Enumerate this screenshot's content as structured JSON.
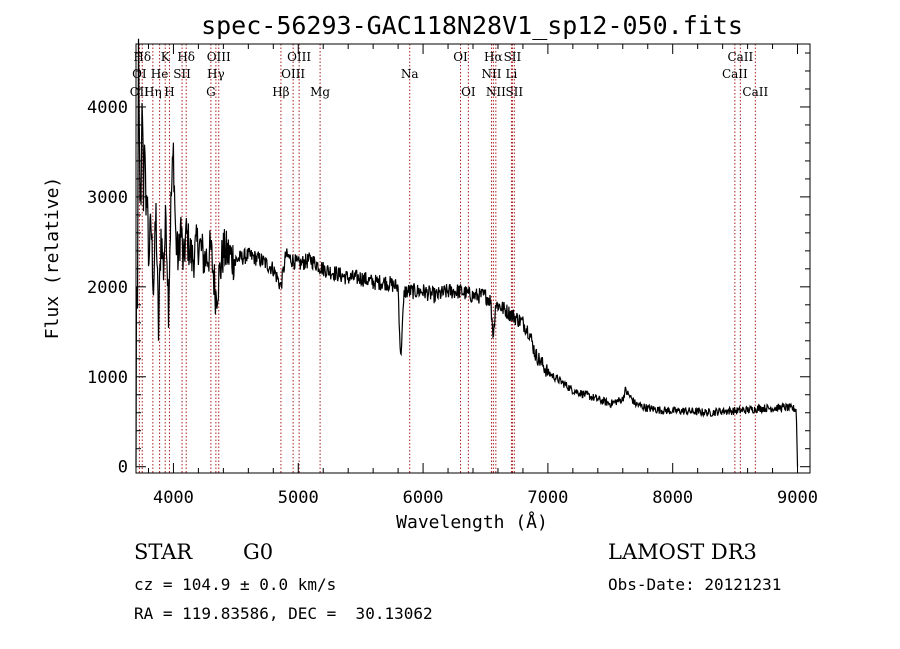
{
  "chart_data": {
    "type": "line",
    "title": "spec-56293-GAC118N28V1_sp12-050.fits",
    "xlabel": "Wavelength (Å)",
    "ylabel": "Flux (relative)",
    "xlim": [
      3700,
      9100
    ],
    "ylim": [
      -70,
      4700
    ],
    "xticks": [
      4000,
      5000,
      6000,
      7000,
      8000,
      9000
    ],
    "xtick_labels": [
      "4000",
      "5000",
      "6000",
      "7000",
      "8000",
      "9000"
    ],
    "yticks": [
      0,
      1000,
      2000,
      3000,
      4000
    ],
    "ytick_labels": [
      "0",
      "1000",
      "2000",
      "3000",
      "4000"
    ],
    "grid": false,
    "series": [
      {
        "name": "spectrum",
        "x": [
          3700,
          3705,
          3710,
          3720,
          3730,
          3740,
          3750,
          3760,
          3770,
          3780,
          3790,
          3800,
          3820,
          3840,
          3860,
          3880,
          3900,
          3920,
          3940,
          3960,
          3980,
          4000,
          4020,
          4040,
          4060,
          4080,
          4100,
          4150,
          4200,
          4250,
          4300,
          4340,
          4400,
          4500,
          4600,
          4700,
          4800,
          4861,
          4900,
          5000,
          5100,
          5200,
          5300,
          5400,
          5500,
          5600,
          5700,
          5800,
          5820,
          5850,
          5900,
          6000,
          6100,
          6200,
          6300,
          6400,
          6500,
          6540,
          6563,
          6580,
          6600,
          6650,
          6700,
          6750,
          6800,
          6850,
          6900,
          6950,
          7000,
          7100,
          7200,
          7300,
          7400,
          7500,
          7600,
          7620,
          7700,
          7800,
          7900,
          8000,
          8100,
          8200,
          8300,
          8400,
          8500,
          8600,
          8700,
          8800,
          8900,
          8990,
          9000
        ],
        "y": [
          0,
          2500,
          1200,
          4500,
          3200,
          2800,
          4200,
          3000,
          3900,
          2600,
          3200,
          2300,
          2700,
          2000,
          2800,
          1500,
          2600,
          2200,
          2800,
          1800,
          2900,
          3500,
          2500,
          2300,
          2700,
          2200,
          2600,
          2300,
          2500,
          2300,
          2400,
          1900,
          2400,
          2300,
          2350,
          2300,
          2200,
          2000,
          2350,
          2250,
          2300,
          2200,
          2150,
          2100,
          2100,
          2050,
          2050,
          2000,
          1200,
          1950,
          1950,
          1950,
          1900,
          1950,
          1950,
          1900,
          1900,
          1850,
          1450,
          1800,
          1800,
          1750,
          1700,
          1650,
          1600,
          1500,
          1250,
          1150,
          1050,
          950,
          850,
          800,
          750,
          700,
          750,
          850,
          700,
          650,
          630,
          620,
          620,
          610,
          600,
          620,
          620,
          630,
          650,
          650,
          660,
          640,
          0
        ]
      }
    ],
    "spectral_lines": [
      {
        "label": "Hδ",
        "x": 3750,
        "row": 0
      },
      {
        "label": "K",
        "x": 3934,
        "row": 0
      },
      {
        "label": "Hδ",
        "x": 4102,
        "row": 0
      },
      {
        "label": "OIII",
        "x": 4363,
        "row": 0
      },
      {
        "label": "OIII",
        "x": 5007,
        "row": 0
      },
      {
        "label": "OI",
        "x": 6300,
        "row": 0
      },
      {
        "label": "Hα",
        "x": 6563,
        "row": 0
      },
      {
        "label": "SII",
        "x": 6716,
        "row": 0
      },
      {
        "label": "CaII",
        "x": 8542,
        "row": 0
      },
      {
        "label": "OI",
        "x": 3727,
        "row": 1
      },
      {
        "label": "He",
        "x": 3889,
        "row": 1
      },
      {
        "label": "SII",
        "x": 4069,
        "row": 1
      },
      {
        "label": "Hγ",
        "x": 4340,
        "row": 1
      },
      {
        "label": "OIII",
        "x": 4959,
        "row": 1
      },
      {
        "label": "Na",
        "x": 5893,
        "row": 1
      },
      {
        "label": "NII",
        "x": 6548,
        "row": 1
      },
      {
        "label": "Li",
        "x": 6708,
        "row": 1
      },
      {
        "label": "CaII",
        "x": 8498,
        "row": 1
      },
      {
        "label": "OII",
        "x": 3727,
        "row": 2
      },
      {
        "label": "Hη",
        "x": 3835,
        "row": 2
      },
      {
        "label": "H",
        "x": 3968,
        "row": 2
      },
      {
        "label": "G",
        "x": 4300,
        "row": 2
      },
      {
        "label": "Hβ",
        "x": 4861,
        "row": 2
      },
      {
        "label": "Mg",
        "x": 5175,
        "row": 2
      },
      {
        "label": "OI",
        "x": 6363,
        "row": 2
      },
      {
        "label": "NII",
        "x": 6583,
        "row": 2
      },
      {
        "label": "SII",
        "x": 6731,
        "row": 2
      },
      {
        "label": "CaII",
        "x": 8662,
        "row": 2
      }
    ],
    "marker_positions": [
      3727,
      3750,
      3835,
      3889,
      3934,
      3968,
      4069,
      4102,
      4300,
      4340,
      4363,
      4861,
      4959,
      5007,
      5175,
      5893,
      6300,
      6363,
      6548,
      6563,
      6583,
      6708,
      6716,
      6731,
      8498,
      8542,
      8662
    ],
    "colors": {
      "spectrum": "#000000",
      "line_marker": "#aa2020",
      "axes": "#000000"
    }
  },
  "info": {
    "object_class": "STAR",
    "subclass": "G0",
    "survey": "LAMOST DR3",
    "cz": "cz = 104.9 ± 0.0 km/s",
    "obs_date": "Obs-Date: 20121231",
    "coords": "RA = 119.83586, DEC =  30.13062"
  }
}
